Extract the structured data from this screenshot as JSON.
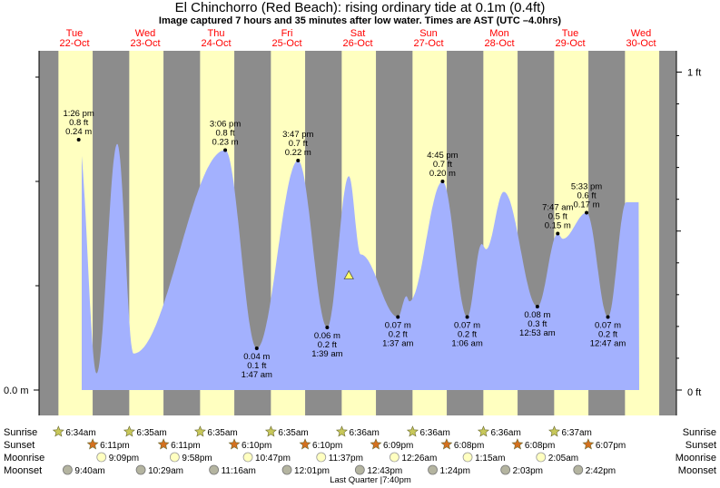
{
  "title": "El Chinchorro (Red Beach): rising  ordinary tide at 0.1m (0.4ft)",
  "subtitle": "Image captured 7 hours and 35 minutes after low water. Times are AST (UTC –4.0hrs)",
  "colors": {
    "day": "#ffffc0",
    "night": "#8c8c8c",
    "tide_fill": "#a3b1fe",
    "day_label": "#ff0000",
    "sunrise_star": "#c8c85a",
    "sunset_star": "#d4701e",
    "moonrise": "#ffffc0",
    "moonset": "#b4b4a0"
  },
  "chart_data": {
    "type": "area",
    "y_unit_left": "m",
    "y_unit_right": "ft",
    "left_axis_label": "0.0 m",
    "right_axis_labels": [
      "0 ft",
      "1 ft"
    ],
    "day_headers": [
      {
        "weekday": "Tue",
        "date": "22-Oct"
      },
      {
        "weekday": "Wed",
        "date": "23-Oct"
      },
      {
        "weekday": "Thu",
        "date": "24-Oct"
      },
      {
        "weekday": "Fri",
        "date": "25-Oct"
      },
      {
        "weekday": "Sat",
        "date": "26-Oct"
      },
      {
        "weekday": "Sun",
        "date": "27-Oct"
      },
      {
        "weekday": "Mon",
        "date": "28-Oct"
      },
      {
        "weekday": "Tue",
        "date": "29-Oct"
      },
      {
        "weekday": "Wed",
        "date": "30-Oct"
      }
    ],
    "x_range_hours": [
      0,
      192
    ],
    "ylim_m": [
      0,
      0.32
    ],
    "extremes": [
      {
        "type": "high",
        "t": 13.43,
        "h": 0.24,
        "time": "1:26 pm",
        "ft": "0.8 ft",
        "m": "0.24 m"
      },
      {
        "type": "low",
        "t": 19.5,
        "h": 0.016
      },
      {
        "type": "high",
        "t": 26.5,
        "h": 0.236
      },
      {
        "type": "low",
        "t": 32.0,
        "h": 0.035
      },
      {
        "type": "high",
        "t": 63.1,
        "h": 0.23,
        "time": "3:06 pm",
        "ft": "0.8 ft",
        "m": "0.23 m"
      },
      {
        "type": "low",
        "t": 73.78,
        "h": 0.04,
        "time": "1:47 am",
        "ft": "0.1 ft",
        "m": "0.04 m"
      },
      {
        "type": "high",
        "t": 87.78,
        "h": 0.22,
        "time": "3:47 pm",
        "ft": "0.7 ft",
        "m": "0.22 m"
      },
      {
        "type": "low",
        "t": 97.65,
        "h": 0.06,
        "time": "1:39 am",
        "ft": "0.2 ft",
        "m": "0.06 m"
      },
      {
        "type": "high",
        "t": 105.0,
        "h": 0.205
      },
      {
        "type": "low",
        "t": 109.0,
        "h": 0.13
      },
      {
        "type": "low",
        "t": 121.62,
        "h": 0.07,
        "time": "1:37 am",
        "ft": "0.2 ft",
        "m": "0.07 m"
      },
      {
        "type": "high",
        "t": 124.5,
        "h": 0.09
      },
      {
        "type": "low",
        "t": 125.5,
        "h": 0.085
      },
      {
        "type": "high",
        "t": 136.75,
        "h": 0.2,
        "time": "4:45 pm",
        "ft": "0.7 ft",
        "m": "0.20 m"
      },
      {
        "type": "low",
        "t": 145.1,
        "h": 0.07,
        "time": "1:06 am",
        "ft": "0.2 ft",
        "m": "0.07 m"
      },
      {
        "type": "high",
        "t": 150.0,
        "h": 0.14
      },
      {
        "type": "low",
        "t": 151.5,
        "h": 0.135
      },
      {
        "type": "high",
        "t": 157.5,
        "h": 0.19
      },
      {
        "type": "low",
        "t": 168.88,
        "h": 0.08,
        "time": "12:53 am",
        "ft": "0.3 ft",
        "m": "0.08 m"
      },
      {
        "type": "high",
        "t": 175.78,
        "h": 0.15,
        "time": "7:47 am",
        "ft": "0.5 ft",
        "m": "0.15 m"
      },
      {
        "type": "low",
        "t": 177.5,
        "h": 0.145
      },
      {
        "type": "high",
        "t": 185.55,
        "h": 0.17,
        "time": "5:33 pm",
        "ft": "0.6 ft",
        "m": "0.17 m"
      },
      {
        "type": "low",
        "t": 192.78,
        "h": 0.07,
        "time": "12:47 am",
        "ft": "0.2 ft",
        "m": "0.07 m"
      },
      {
        "type": "high",
        "t": 199.0,
        "h": 0.18
      }
    ],
    "current_marker": {
      "t": 105.0,
      "h": 0.11
    },
    "sunrise": [
      "6:34am",
      "6:35am",
      "6:35am",
      "6:35am",
      "6:36am",
      "6:36am",
      "6:36am",
      "6:37am"
    ],
    "sunset": [
      "6:11pm",
      "6:11pm",
      "6:10pm",
      "6:10pm",
      "6:09pm",
      "6:08pm",
      "6:08pm",
      "6:07pm"
    ],
    "moonrise": [
      "9:09pm",
      "9:58pm",
      "10:47pm",
      "11:37pm",
      "12:26am",
      "1:15am",
      "2:05am"
    ],
    "moonset": [
      "9:40am",
      "10:29am",
      "11:16am",
      "12:01pm",
      "12:43pm",
      "1:24pm",
      "2:03pm",
      "2:42pm"
    ],
    "moon_phase": "Last Quarter |7:40pm",
    "row_labels": [
      "Sunrise",
      "Sunset",
      "Moonrise",
      "Moonset"
    ]
  }
}
